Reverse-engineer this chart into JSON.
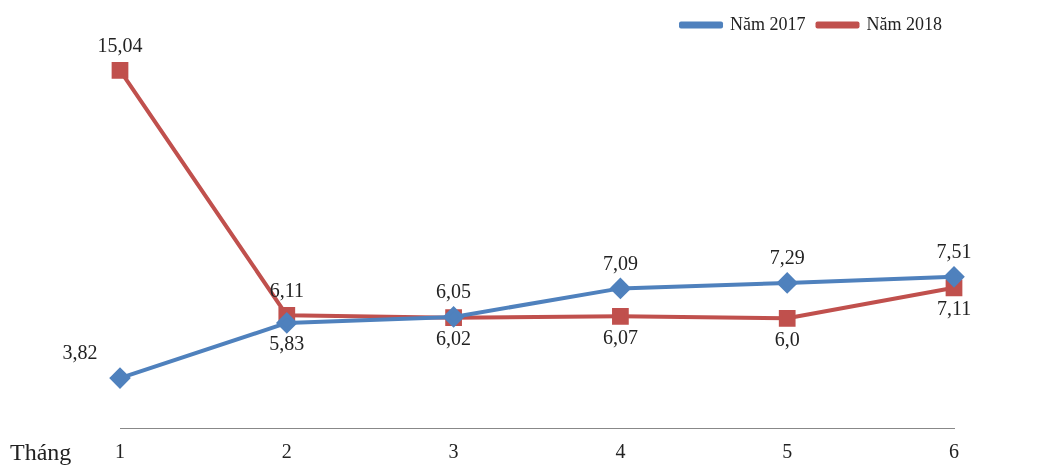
{
  "chart_data": {
    "type": "line",
    "xlabel": "Tháng",
    "categories": [
      "1",
      "2",
      "3",
      "4",
      "5",
      "6"
    ],
    "legend": "top right",
    "grid": false,
    "series": [
      {
        "name": "Năm 2017",
        "color": "#4f81bd",
        "marker": "diamond",
        "values": [
          3.82,
          5.83,
          6.05,
          7.09,
          7.29,
          7.51
        ],
        "value_labels": [
          "3,82",
          "5,83",
          "6,05",
          "7,09",
          "7,29",
          "7,51"
        ]
      },
      {
        "name": "Năm 2018",
        "color": "#c0504d",
        "marker": "square",
        "values": [
          15.04,
          6.11,
          6.02,
          6.07,
          6.0,
          7.11
        ],
        "value_labels": [
          "15,04",
          "6,11",
          "6,02",
          "6,07",
          "6,0",
          "7,11"
        ]
      }
    ]
  }
}
